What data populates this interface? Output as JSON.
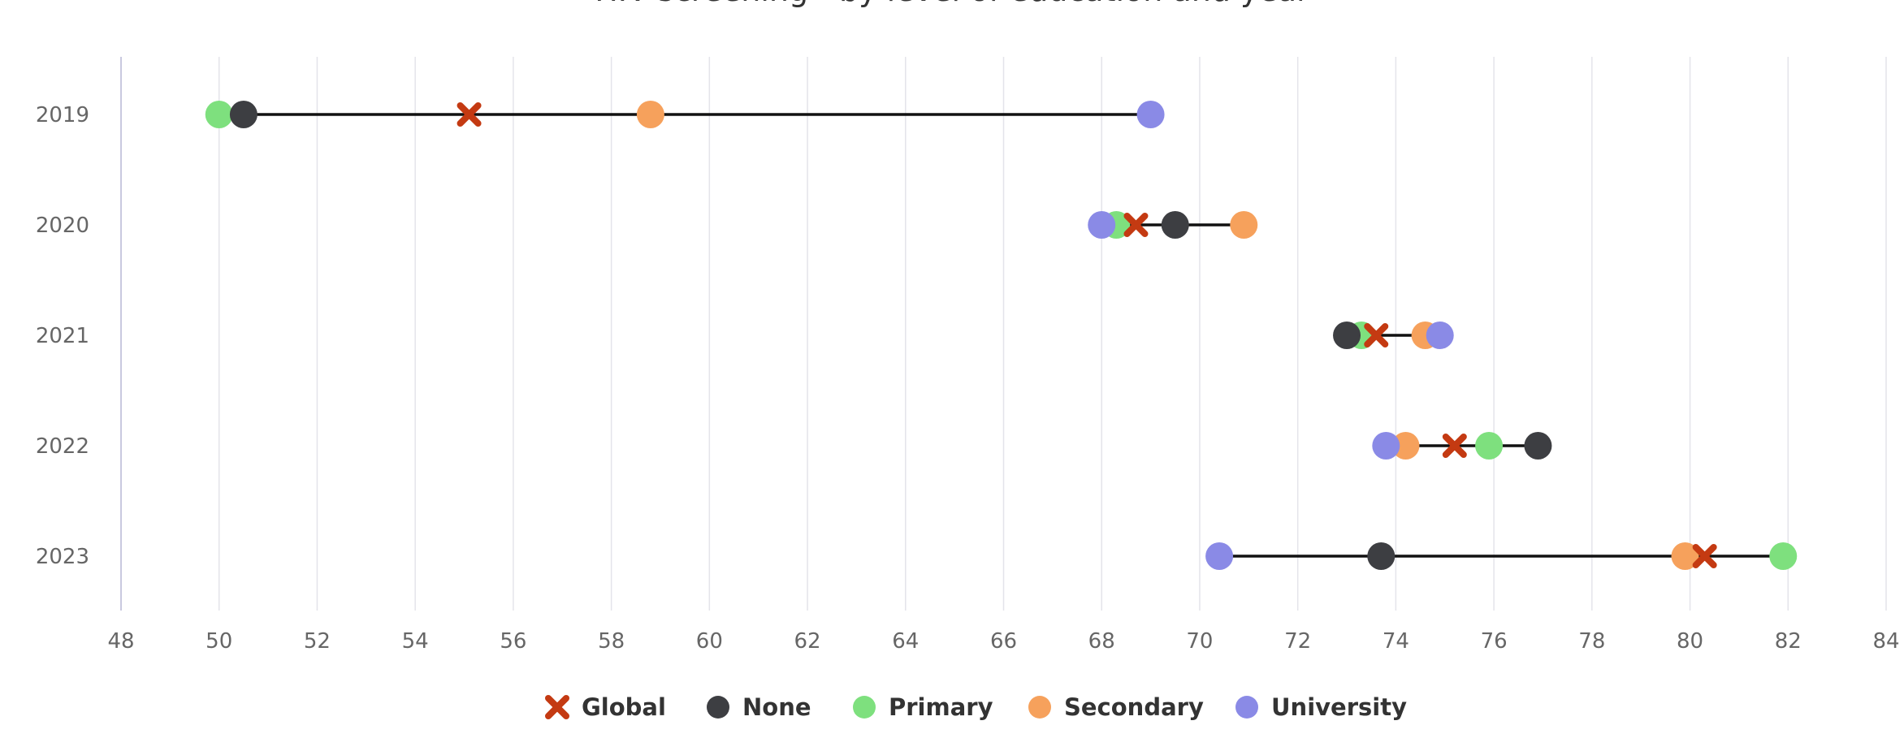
{
  "chart_data": {
    "type": "scatter",
    "title": "HIV screening - by level of education and year",
    "categories": [
      "2019",
      "2020",
      "2021",
      "2022",
      "2023"
    ],
    "xlim": [
      48,
      84
    ],
    "xticks": [
      48,
      50,
      52,
      54,
      56,
      58,
      60,
      62,
      64,
      66,
      68,
      70,
      72,
      74,
      76,
      78,
      80,
      82,
      84
    ],
    "grid": true,
    "legend_position": "bottom",
    "series": [
      {
        "name": "Global",
        "marker": "x",
        "color": "#c43a12",
        "values": [
          55.1,
          68.7,
          73.6,
          75.2,
          80.3
        ]
      },
      {
        "name": "None",
        "marker": "circle",
        "color": "#3d3e42",
        "values": [
          50.5,
          69.5,
          73.0,
          76.9,
          73.7
        ]
      },
      {
        "name": "Primary",
        "marker": "circle",
        "color": "#7ee07e",
        "values": [
          50.0,
          68.3,
          73.3,
          75.9,
          81.9
        ]
      },
      {
        "name": "Secondary",
        "marker": "circle",
        "color": "#f6a15c",
        "values": [
          58.8,
          70.9,
          74.6,
          74.2,
          79.9
        ]
      },
      {
        "name": "University",
        "marker": "circle",
        "color": "#8a8ae6",
        "values": [
          69.0,
          68.0,
          74.9,
          73.8,
          70.4
        ]
      }
    ]
  }
}
